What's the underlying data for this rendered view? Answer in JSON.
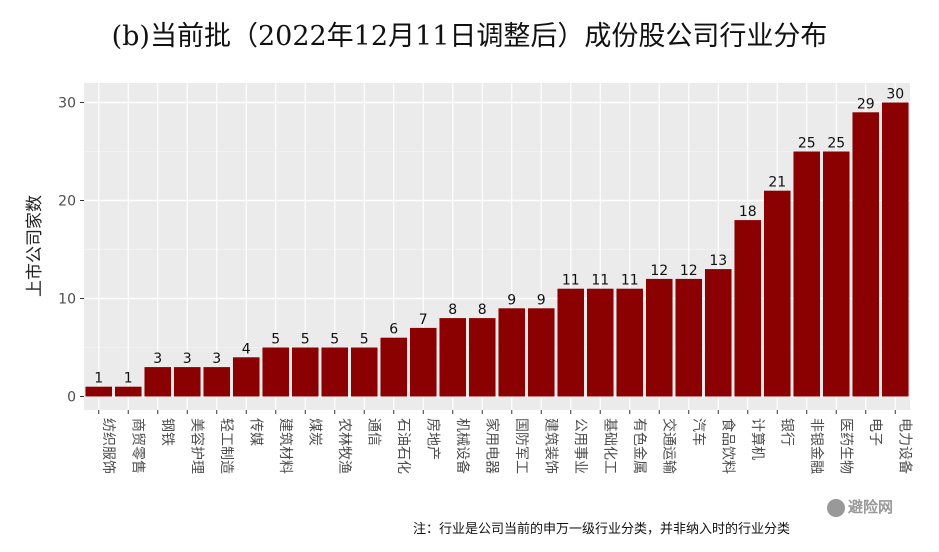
{
  "chart_data": {
    "type": "bar",
    "title": "(b)当前批（2022年12月11日调整后）成份股公司行业分布",
    "xlabel": "",
    "ylabel": "上市公司家数",
    "categories": [
      "纺织服饰",
      "商贸零售",
      "钢铁",
      "美容护理",
      "轻工制造",
      "传媒",
      "建筑材料",
      "煤炭",
      "农林牧渔",
      "通信",
      "石油石化",
      "房地产",
      "机械设备",
      "家用电器",
      "国防军工",
      "建筑装饰",
      "公用事业",
      "基础化工",
      "有色金属",
      "交通运输",
      "汽车",
      "食品饮料",
      "计算机",
      "银行",
      "非银金融",
      "医药生物",
      "电子",
      "电力设备"
    ],
    "values": [
      1,
      1,
      3,
      3,
      3,
      4,
      5,
      5,
      5,
      5,
      6,
      7,
      8,
      8,
      9,
      9,
      11,
      11,
      11,
      12,
      12,
      13,
      18,
      21,
      25,
      25,
      29,
      30
    ],
    "ylim": [
      0,
      31
    ],
    "yticks": [
      0,
      10,
      20,
      30
    ],
    "grid": true,
    "bar_color": "#8b0000",
    "panel_color": "#ebebeb",
    "data_labels": true
  },
  "note": "注：行业是公司当前的申万一级行业分类，并非纳入时的行业分类",
  "watermark": "避险网"
}
